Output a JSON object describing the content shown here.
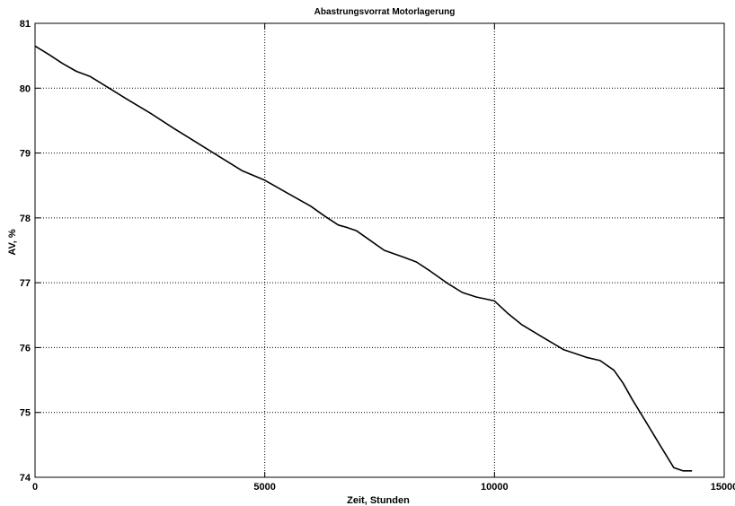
{
  "chart_data": {
    "type": "line",
    "title": "Abastrungsvorrat Motorlagerung",
    "xlabel": "Zeit, Stunden",
    "ylabel": "AV, %",
    "xlim": [
      0,
      15000
    ],
    "ylim": [
      74,
      81
    ],
    "xticks": [
      0,
      5000,
      10000,
      15000
    ],
    "yticks": [
      74,
      75,
      76,
      77,
      78,
      79,
      80,
      81
    ],
    "xtick_labels": [
      "0",
      "5000",
      "10000",
      "15000"
    ],
    "ytick_labels": [
      "74",
      "75",
      "76",
      "77",
      "78",
      "79",
      "80",
      "81"
    ],
    "grid": true,
    "grid_style": "dotted",
    "legend": "none",
    "line_color": "#000000",
    "series": [
      {
        "x": [
          0,
          300,
          600,
          900,
          1200,
          1500,
          2000,
          2500,
          3000,
          3500,
          4000,
          4500,
          5000,
          5500,
          6000,
          6300,
          6600,
          6800,
          7000,
          7300,
          7600,
          7800,
          8000,
          8300,
          8600,
          9000,
          9300,
          9600,
          10000,
          10300,
          10600,
          11000,
          11500,
          12000,
          12300,
          12600,
          12800,
          13000,
          13300,
          13600,
          13900,
          14100,
          14300
        ],
        "y": [
          80.65,
          80.52,
          80.38,
          80.26,
          80.18,
          80.05,
          79.83,
          79.62,
          79.39,
          79.17,
          78.95,
          78.73,
          78.58,
          78.38,
          78.18,
          78.03,
          77.89,
          77.85,
          77.8,
          77.65,
          77.5,
          77.45,
          77.4,
          77.32,
          77.18,
          76.98,
          76.85,
          76.78,
          76.72,
          76.52,
          76.35,
          76.18,
          75.97,
          75.85,
          75.8,
          75.65,
          75.45,
          75.2,
          74.85,
          74.5,
          74.15,
          74.1,
          74.1
        ]
      }
    ]
  }
}
